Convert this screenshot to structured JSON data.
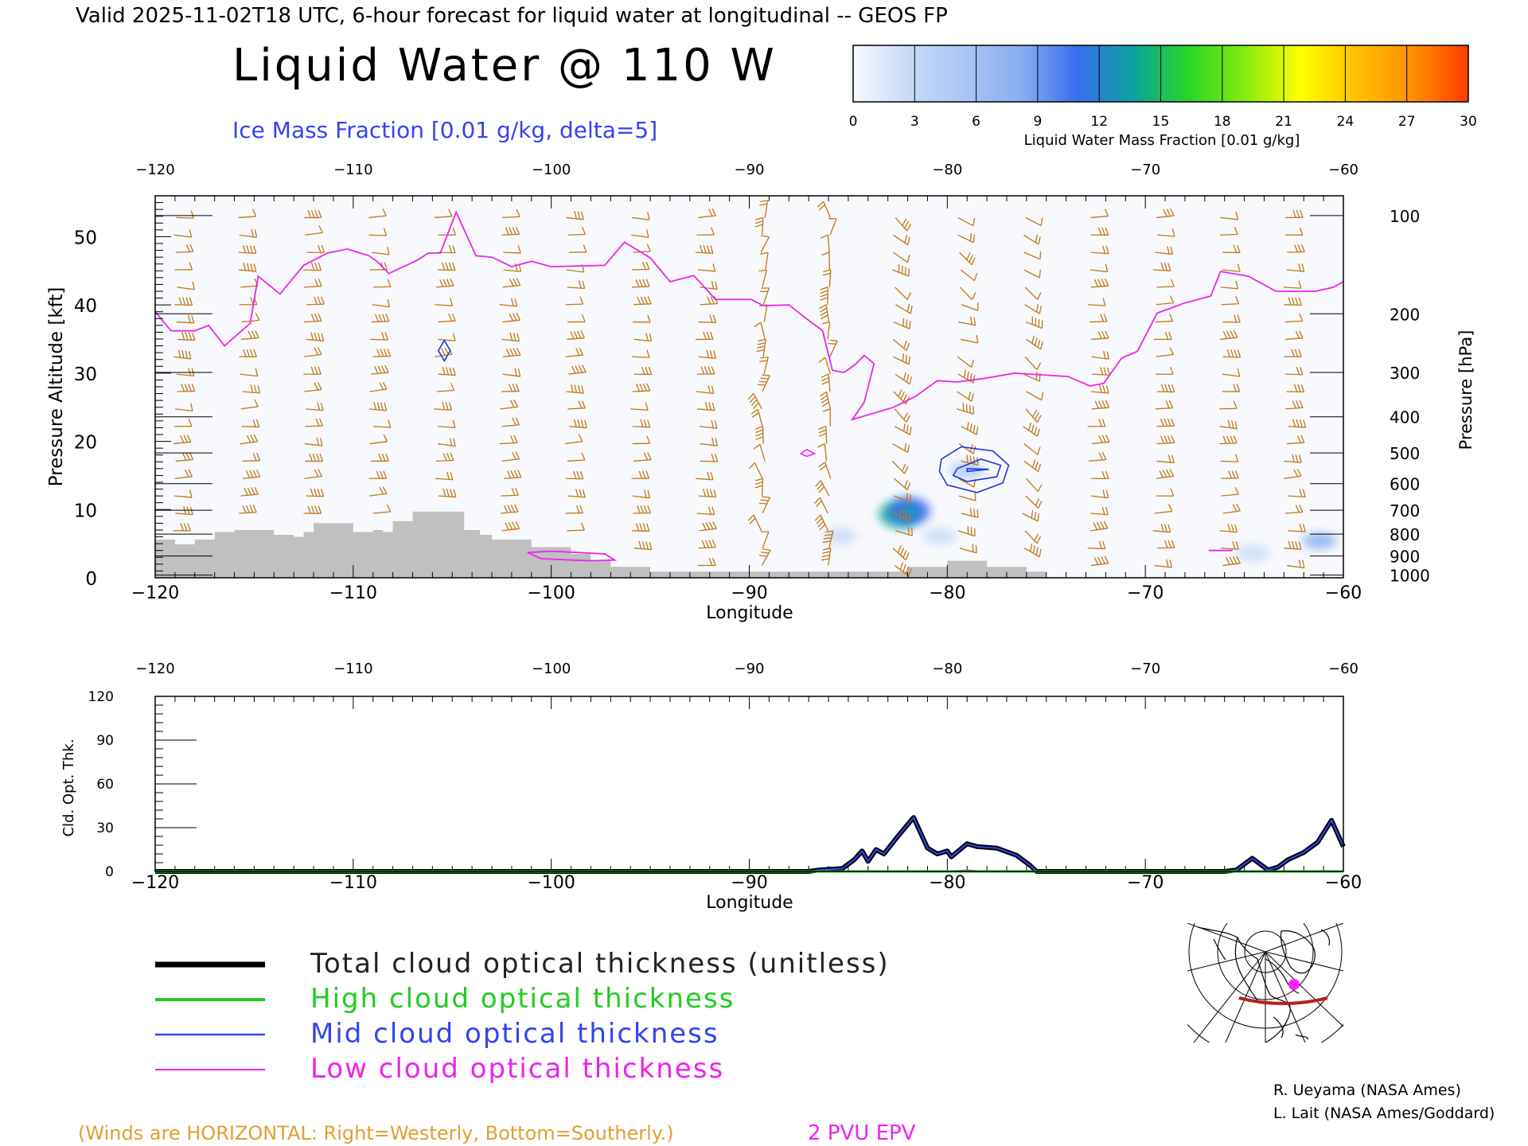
{
  "header": {
    "valid_line": "Valid 2025-11-02T18 UTC, 6-hour forecast for liquid water at longitudinal -- GEOS FP",
    "title": "Liquid Water @ 110 W",
    "subtitle": "Ice Mass Fraction [0.01 g/kg, delta=5]"
  },
  "colorbar": {
    "label": "Liquid Water Mass Fraction [0.01 g/kg]",
    "ticks": [
      "0",
      "3",
      "6",
      "9",
      "12",
      "15",
      "18",
      "21",
      "24",
      "27",
      "30"
    ],
    "colors": [
      "#f6f8ff",
      "#c8daf8",
      "#a9c6f4",
      "#88aef0",
      "#3a6df0",
      "#0aa2a0",
      "#28d628",
      "#86ea10",
      "#ffff00",
      "#ffc000",
      "#ff9000",
      "#ff3c00"
    ]
  },
  "legend": {
    "entries": [
      {
        "label": "Total cloud optical thickness (unitless)",
        "color": "#000000"
      },
      {
        "label": "High cloud optical thickness",
        "color": "#22cc22"
      },
      {
        "label": "Mid cloud optical thickness",
        "color": "#3344ee"
      },
      {
        "label": "Low cloud optical thickness",
        "color": "#ee22ee"
      }
    ]
  },
  "footer": {
    "winds_note": "(Winds are HORIZONTAL: Right=Westerly, Bottom=Southerly.)",
    "epv_note": "2 PVU EPV",
    "credit1": "R. Ueyama (NASA Ames)",
    "credit2": "L. Lait (NASA Ames/Goddard)"
  },
  "colors": {
    "pv_line": "#ee22ee",
    "barb": "#c07818",
    "terrain": "#c0c0c0",
    "ice_contour": "#2233dd"
  },
  "chart_data": [
    {
      "type": "heatmap",
      "title": "Liquid Water @ 110 W",
      "xlabel": "Longitude",
      "ylabel": "Pressure Altitude [kft]",
      "y2label": "Pressure [hPa]",
      "xlim": [
        -120,
        -60
      ],
      "ylim": [
        0,
        56
      ],
      "x_ticks": [
        -120,
        -110,
        -100,
        -90,
        -80,
        -70,
        -60
      ],
      "x_tick_labels": [
        "−120",
        "−110",
        "−100",
        "−90",
        "−80",
        "−70",
        "−60"
      ],
      "y_ticks": [
        0,
        10,
        20,
        30,
        40,
        50
      ],
      "pressure_ticks": [
        {
          "label": "100",
          "alt": 53.1
        },
        {
          "label": "200",
          "alt": 38.7
        },
        {
          "label": "300",
          "alt": 30.1
        },
        {
          "label": "400",
          "alt": 23.6
        },
        {
          "label": "500",
          "alt": 18.3
        },
        {
          "label": "600",
          "alt": 13.8
        },
        {
          "label": "700",
          "alt": 9.9
        },
        {
          "label": "800",
          "alt": 6.4
        },
        {
          "label": "900",
          "alt": 3.2
        },
        {
          "label": "1000",
          "alt": 0.4
        }
      ],
      "liquid_water_blobs": [
        {
          "lon": -82.4,
          "alt": 9.3,
          "value": 14
        },
        {
          "lon": -81.9,
          "alt": 9.8,
          "value": 10
        },
        {
          "lon": -79.0,
          "alt": 15.8,
          "value": 6
        },
        {
          "lon": -85.4,
          "alt": 6.1,
          "value": 3
        },
        {
          "lon": -80.4,
          "alt": 6.1,
          "value": 2
        },
        {
          "lon": -61.2,
          "alt": 5.4,
          "value": 7
        },
        {
          "lon": -64.6,
          "alt": 3.6,
          "value": 3
        }
      ],
      "ice_contours": [
        {
          "points": [
            [
              -105.4,
              34.8
            ],
            [
              -105.1,
              33.3
            ],
            [
              -105.4,
              31.8
            ],
            [
              -105.7,
              33.3
            ]
          ]
        },
        {
          "points": [
            [
              -80.3,
              17.4
            ],
            [
              -79.3,
              19.2
            ],
            [
              -77.7,
              18.6
            ],
            [
              -76.9,
              16.5
            ],
            [
              -77.2,
              13.9
            ],
            [
              -78.5,
              12.5
            ],
            [
              -80.0,
              13.6
            ],
            [
              -80.4,
              15.6
            ]
          ]
        },
        {
          "points": [
            [
              -79.5,
              16.0
            ],
            [
              -78.3,
              17.4
            ],
            [
              -77.3,
              16.5
            ],
            [
              -77.5,
              14.8
            ],
            [
              -79.0,
              14.1
            ],
            [
              -79.7,
              15.0
            ]
          ]
        },
        {
          "points": [
            [
              -79.0,
              15.6
            ],
            [
              -77.9,
              15.9
            ],
            [
              -79.0,
              16.0
            ]
          ]
        },
        {
          "points": [
            [
              -87.4,
              18.2
            ],
            [
              -87.1,
              18.8
            ],
            [
              -86.7,
              18.2
            ],
            [
              -87.1,
              17.8
            ]
          ]
        }
      ],
      "pv_line": [
        [
          -120,
          39.0
        ],
        [
          -119.2,
          36.2
        ],
        [
          -118.0,
          36.2
        ],
        [
          -117.3,
          37.0
        ],
        [
          -116.5,
          34.0
        ],
        [
          -115.2,
          37.3
        ],
        [
          -114.8,
          44.2
        ],
        [
          -113.7,
          41.6
        ],
        [
          -112.5,
          45.8
        ],
        [
          -111.3,
          47.6
        ],
        [
          -110.3,
          48.2
        ],
        [
          -109.2,
          47.2
        ],
        [
          -108.8,
          46.4
        ],
        [
          -108.2,
          44.6
        ],
        [
          -106.8,
          46.5
        ],
        [
          -106.2,
          47.6
        ],
        [
          -105.6,
          47.6
        ],
        [
          -104.8,
          53.6
        ],
        [
          -103.8,
          47.2
        ],
        [
          -103.0,
          47.0
        ],
        [
          -102.0,
          45.6
        ],
        [
          -101.0,
          46.4
        ],
        [
          -100.0,
          45.6
        ],
        [
          -97.3,
          45.8
        ],
        [
          -96.3,
          49.2
        ],
        [
          -95.0,
          46.9
        ],
        [
          -94.0,
          43.4
        ],
        [
          -92.8,
          44.3
        ],
        [
          -91.7,
          40.8
        ],
        [
          -89.9,
          40.8
        ],
        [
          -89.3,
          39.9
        ],
        [
          -88.0,
          40.0
        ],
        [
          -87.3,
          38.4
        ],
        [
          -86.3,
          36.2
        ],
        [
          -85.8,
          30.4
        ],
        [
          -85.2,
          30.1
        ],
        [
          -84.6,
          31.4
        ],
        [
          -84.2,
          32.6
        ],
        [
          -83.7,
          31.4
        ],
        [
          -84.2,
          25.7
        ],
        [
          -84.8,
          23.2
        ],
        [
          -82.7,
          25.0
        ],
        [
          -81.6,
          26.6
        ],
        [
          -80.5,
          28.9
        ],
        [
          -79.5,
          28.7
        ],
        [
          -78.2,
          29.2
        ],
        [
          -76.6,
          30.0
        ],
        [
          -73.9,
          29.5
        ],
        [
          -72.8,
          28.1
        ],
        [
          -72.1,
          28.5
        ],
        [
          -71.2,
          32.2
        ],
        [
          -70.4,
          33.2
        ],
        [
          -69.4,
          38.8
        ],
        [
          -68.0,
          40.3
        ],
        [
          -66.7,
          41.3
        ],
        [
          -66.2,
          44.9
        ],
        [
          -64.8,
          44.2
        ],
        [
          -63.4,
          42.0
        ],
        [
          -61.4,
          42.0
        ],
        [
          -60.5,
          42.6
        ],
        [
          -60.0,
          43.4
        ]
      ],
      "pv_line_low": [
        [
          -101.2,
          3.7
        ],
        [
          -100.0,
          3.9
        ],
        [
          -98.6,
          3.7
        ],
        [
          -97.3,
          3.5
        ],
        [
          -96.8,
          2.6
        ],
        [
          -98.0,
          2.5
        ],
        [
          -99.0,
          2.6
        ],
        [
          -100.5,
          2.8
        ],
        [
          -101.2,
          3.7
        ]
      ],
      "pv_line_low2": [
        [
          -66.8,
          4.0
        ],
        [
          -65.6,
          4.0
        ]
      ],
      "terrain": [
        [
          -120,
          0
        ],
        [
          -120,
          5.6
        ],
        [
          -119,
          5.6
        ],
        [
          -119,
          4.9
        ],
        [
          -118,
          4.9
        ],
        [
          -118,
          5.6
        ],
        [
          -117,
          5.6
        ],
        [
          -117,
          6.7
        ],
        [
          -116,
          6.7
        ],
        [
          -116,
          7.0
        ],
        [
          -114,
          7.0
        ],
        [
          -114,
          6.3
        ],
        [
          -113,
          6.3
        ],
        [
          -113,
          6.0
        ],
        [
          -112.5,
          6.0
        ],
        [
          -112.5,
          6.7
        ],
        [
          -112,
          6.7
        ],
        [
          -112,
          8.0
        ],
        [
          -110,
          8.0
        ],
        [
          -110,
          6.7
        ],
        [
          -109,
          6.7
        ],
        [
          -109,
          7.0
        ],
        [
          -108.5,
          7.0
        ],
        [
          -108.5,
          6.7
        ],
        [
          -108,
          6.7
        ],
        [
          -108,
          8.3
        ],
        [
          -107,
          8.3
        ],
        [
          -107,
          9.7
        ],
        [
          -105.5,
          9.7
        ],
        [
          -105.5,
          9.7
        ],
        [
          -104.4,
          9.7
        ],
        [
          -104.4,
          7.0
        ],
        [
          -103.6,
          7.0
        ],
        [
          -103.6,
          6.3
        ],
        [
          -103,
          6.3
        ],
        [
          -103,
          5.6
        ],
        [
          -101,
          5.6
        ],
        [
          -101,
          4.5
        ],
        [
          -99,
          4.5
        ],
        [
          -99,
          3.5
        ],
        [
          -98,
          3.5
        ],
        [
          -98,
          2.5
        ],
        [
          -97,
          2.5
        ],
        [
          -97,
          1.6
        ],
        [
          -95,
          1.6
        ],
        [
          -95,
          0.9
        ],
        [
          -90,
          0.9
        ],
        [
          -90,
          0.9
        ],
        [
          -82,
          0.9
        ],
        [
          -82,
          1.6
        ],
        [
          -80,
          1.6
        ],
        [
          -80,
          2.5
        ],
        [
          -78,
          2.5
        ],
        [
          -78,
          1.6
        ],
        [
          -76,
          1.6
        ],
        [
          -76,
          0.9
        ],
        [
          -75,
          0.9
        ],
        [
          -75,
          0
        ]
      ]
    },
    {
      "type": "line",
      "xlabel": "Longitude",
      "ylabel": "Cld. Opt. Thk.",
      "xlim": [
        -120,
        -60
      ],
      "ylim": [
        0,
        120
      ],
      "x_ticks": [
        -120,
        -110,
        -100,
        -90,
        -80,
        -70,
        -60
      ],
      "x_tick_labels": [
        "−120",
        "−110",
        "−100",
        "−90",
        "−80",
        "−70",
        "−60"
      ],
      "y_ticks": [
        0,
        30,
        60,
        90,
        120
      ],
      "series": [
        {
          "name": "Total cloud optical thickness (unitless)",
          "color": "#000000",
          "x": [
            -120,
            -87,
            -86.5,
            -85.3,
            -84.7,
            -84.3,
            -84.0,
            -83.6,
            -83.2,
            -82.5,
            -81.7,
            -81.0,
            -80.5,
            -80.0,
            -79.8,
            -79.0,
            -78.5,
            -77.5,
            -76.5,
            -75.8,
            -75.5,
            -66,
            -65.4,
            -64.6,
            -63.8,
            -63.3,
            -62.8,
            -62.0,
            -61.3,
            -60.6,
            -60.0
          ],
          "y": [
            0,
            0,
            1,
            2,
            8,
            14,
            7,
            15,
            12,
            24,
            37,
            16,
            12,
            14,
            10,
            19,
            17,
            16,
            11,
            4,
            0,
            0,
            1,
            9,
            1,
            3,
            8,
            13,
            20,
            35,
            17
          ]
        },
        {
          "name": "High cloud optical thickness",
          "color": "#22cc22",
          "x": [
            -120,
            -60
          ],
          "y": [
            0,
            0
          ]
        },
        {
          "name": "Mid cloud optical thickness",
          "color": "#3344ee",
          "x": [
            -120,
            -87,
            -86.5,
            -85.3,
            -84.7,
            -84.3,
            -84.0,
            -83.6,
            -83.2,
            -82.5,
            -81.7,
            -81.0,
            -80.5,
            -80.0,
            -79.8,
            -79.0,
            -78.5,
            -77.5,
            -76.5,
            -75.8,
            -75.5,
            -66,
            -65.4,
            -64.6,
            -63.8,
            -63.3,
            -62.8,
            -62.0,
            -61.3,
            -60.6,
            -60.0
          ],
          "y": [
            0,
            0,
            1,
            2,
            8,
            14,
            7,
            15,
            12,
            24,
            37,
            16,
            12,
            14,
            10,
            19,
            17,
            16,
            11,
            4,
            0,
            0,
            1,
            9,
            1,
            3,
            8,
            13,
            20,
            35,
            17
          ]
        },
        {
          "name": "Low cloud optical thickness",
          "color": "#ee22ee",
          "x": [
            -120,
            -80,
            -79,
            -78,
            -60
          ],
          "y": [
            0,
            0,
            1,
            0,
            0
          ]
        }
      ]
    }
  ]
}
